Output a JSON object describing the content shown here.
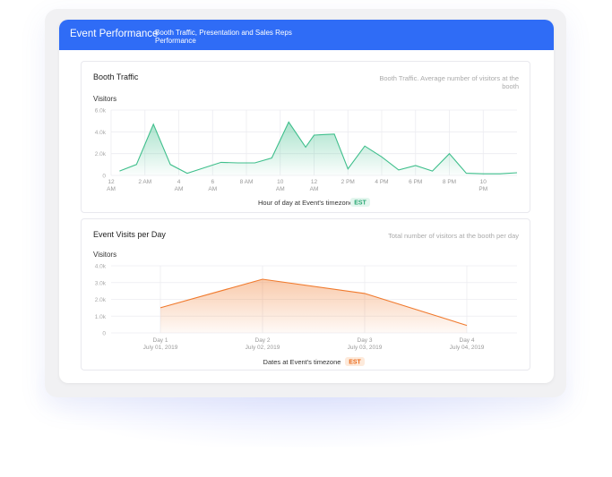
{
  "header": {
    "title": "Event Performance",
    "subtitle": "Booth Traffic, Presentation and Sales Reps Performance"
  },
  "chart_data": [
    {
      "type": "area",
      "title": "Booth Traffic",
      "description": "Booth Traffic. Average number of visitors at the booth",
      "ylabel": "Visitors",
      "xlabel": "Hour of day at Event's timezone",
      "timezone_badge": "EST",
      "ylim": [
        0,
        6000
      ],
      "yticks": [
        "0",
        "2.0k",
        "4.0k",
        "6.0k"
      ],
      "xticks": [
        {
          "x": 0,
          "label": "12\nAM"
        },
        {
          "x": 2,
          "label": "2 AM"
        },
        {
          "x": 4,
          "label": "4\nAM"
        },
        {
          "x": 6,
          "label": "6\nAM"
        },
        {
          "x": 8,
          "label": "8 AM"
        },
        {
          "x": 10,
          "label": "10\nAM"
        },
        {
          "x": 12,
          "label": "12\nAM"
        },
        {
          "x": 14,
          "label": "2 PM"
        },
        {
          "x": 16,
          "label": "4 PM"
        },
        {
          "x": 18,
          "label": "6 PM"
        },
        {
          "x": 20,
          "label": "8 PM"
        },
        {
          "x": 22,
          "label": "10\nPM"
        }
      ],
      "grid": true,
      "color": "#3fbf8c",
      "series": [
        {
          "x": [
            0.5,
            1.5,
            2.5,
            3.5,
            4.5,
            5.5,
            6.5,
            7.5,
            8.5,
            9.5,
            10.5,
            11.5,
            12,
            12.5,
            13.2,
            14,
            15,
            16,
            17,
            18,
            19,
            20,
            21,
            22,
            23,
            24
          ],
          "y": [
            400,
            1000,
            4700,
            1000,
            200,
            700,
            1200,
            1150,
            1150,
            1600,
            4900,
            2600,
            3700,
            3750,
            3800,
            600,
            2700,
            1700,
            500,
            900,
            400,
            2000,
            200,
            150,
            150,
            250
          ]
        }
      ]
    },
    {
      "type": "area",
      "title": "Event Visits per Day",
      "description": "Total number of visitors at the booth per day",
      "ylabel": "Visitors",
      "xlabel": "Dates at Event's timezone",
      "timezone_badge": "EST",
      "ylim": [
        0,
        4000
      ],
      "yticks": [
        "0",
        "1.0k",
        "2.0k",
        "3.0k",
        "4.0k"
      ],
      "categories": [
        {
          "label": "Day 1",
          "date": "July 01, 2019"
        },
        {
          "label": "Day 2",
          "date": "July 02, 2019"
        },
        {
          "label": "Day 3",
          "date": "July 03, 2019"
        },
        {
          "label": "Day 4",
          "date": "July 04, 2019"
        }
      ],
      "values": [
        1500,
        3200,
        2350,
        450
      ],
      "grid": true,
      "color": "#f07a2d"
    }
  ]
}
